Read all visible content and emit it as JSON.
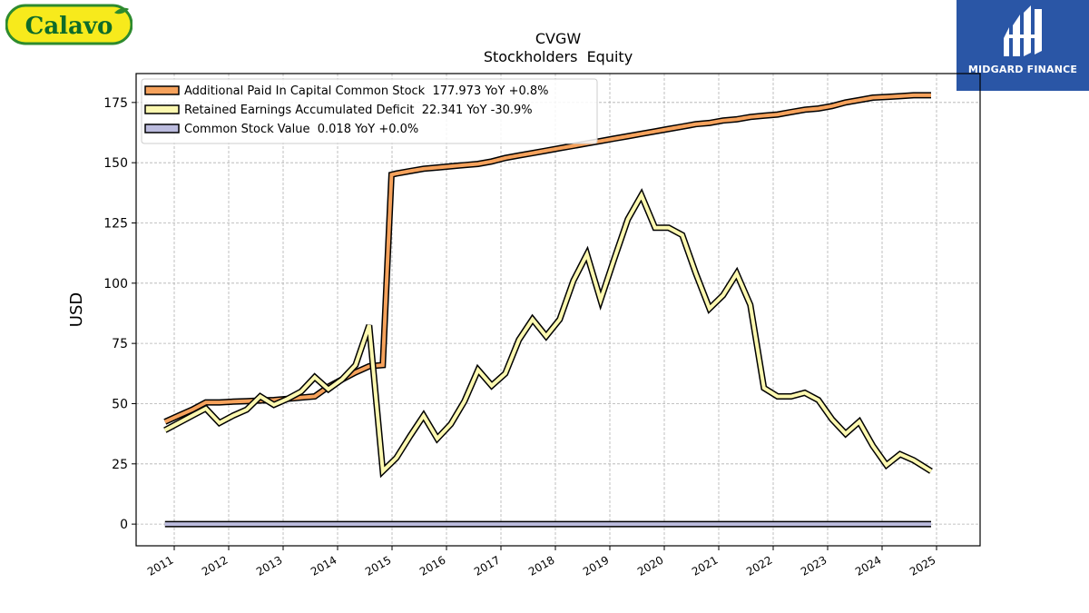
{
  "brand_logo": {
    "text": "Calavo",
    "colors": {
      "background": "#f7ea1c",
      "border": "#2e8b2e",
      "text": "#0e6b2a"
    }
  },
  "partner_logo": {
    "name": "MIDGARD FINANCE",
    "colors": {
      "background": "#2a56a6",
      "text": "#ffffff"
    }
  },
  "chart_data": {
    "type": "line",
    "title": "CVGW",
    "subtitle": "Stockholders  Equity",
    "ylabel": "USD",
    "xlabel": "",
    "xlim": [
      2010.3,
      2025.8
    ],
    "ylim": [
      -9,
      187
    ],
    "yticks": [
      0,
      25,
      50,
      75,
      100,
      125,
      150,
      175
    ],
    "xticks": [
      "2011",
      "2012",
      "2013",
      "2014",
      "2015",
      "2016",
      "2017",
      "2018",
      "2019",
      "2020",
      "2021",
      "2022",
      "2023",
      "2024",
      "2025"
    ],
    "grid": true,
    "legend_position": "top-left",
    "series": [
      {
        "name": "Additional Paid In Capital Common Stock  177.973 YoY +0.8%",
        "color": "#f6a25c",
        "points": [
          [
            2010.83,
            42.5
          ],
          [
            2011.08,
            45.0
          ],
          [
            2011.33,
            47.5
          ],
          [
            2011.58,
            50.5
          ],
          [
            2011.83,
            50.5
          ],
          [
            2012.08,
            50.8
          ],
          [
            2012.33,
            51.0
          ],
          [
            2012.58,
            51.3
          ],
          [
            2012.83,
            51.5
          ],
          [
            2013.08,
            52.0
          ],
          [
            2013.33,
            52.5
          ],
          [
            2013.58,
            53.0
          ],
          [
            2013.83,
            57.0
          ],
          [
            2014.08,
            60.0
          ],
          [
            2014.33,
            63.0
          ],
          [
            2014.58,
            65.5
          ],
          [
            2014.83,
            66.0
          ],
          [
            2014.99,
            145.0
          ],
          [
            2015.08,
            145.5
          ],
          [
            2015.33,
            146.5
          ],
          [
            2015.58,
            147.5
          ],
          [
            2015.83,
            148.0
          ],
          [
            2016.08,
            148.5
          ],
          [
            2016.33,
            149.0
          ],
          [
            2016.58,
            149.5
          ],
          [
            2016.83,
            150.5
          ],
          [
            2017.08,
            152.0
          ],
          [
            2017.33,
            153.0
          ],
          [
            2017.58,
            154.0
          ],
          [
            2017.83,
            155.0
          ],
          [
            2018.08,
            156.0
          ],
          [
            2018.33,
            157.0
          ],
          [
            2018.58,
            158.0
          ],
          [
            2018.83,
            159.0
          ],
          [
            2019.08,
            160.0
          ],
          [
            2019.33,
            161.0
          ],
          [
            2019.58,
            162.0
          ],
          [
            2019.83,
            163.0
          ],
          [
            2020.08,
            164.0
          ],
          [
            2020.33,
            165.0
          ],
          [
            2020.58,
            166.0
          ],
          [
            2020.83,
            166.5
          ],
          [
            2021.08,
            167.5
          ],
          [
            2021.33,
            168.0
          ],
          [
            2021.58,
            169.0
          ],
          [
            2021.83,
            169.5
          ],
          [
            2022.08,
            170.0
          ],
          [
            2022.33,
            171.0
          ],
          [
            2022.58,
            172.0
          ],
          [
            2022.83,
            172.5
          ],
          [
            2023.08,
            173.5
          ],
          [
            2023.33,
            175.0
          ],
          [
            2023.58,
            176.0
          ],
          [
            2023.83,
            177.0
          ],
          [
            2024.08,
            177.3
          ],
          [
            2024.33,
            177.6
          ],
          [
            2024.58,
            178.0
          ],
          [
            2024.9,
            178.0
          ]
        ]
      },
      {
        "name": "Retained Earnings Accumulated Deficit  22.341 YoY -30.9%",
        "color": "#fcf8b0",
        "points": [
          [
            2010.83,
            39.0
          ],
          [
            2011.08,
            42.0
          ],
          [
            2011.33,
            45.0
          ],
          [
            2011.58,
            48.0
          ],
          [
            2011.83,
            42.0
          ],
          [
            2012.08,
            45.0
          ],
          [
            2012.33,
            47.5
          ],
          [
            2012.58,
            53.0
          ],
          [
            2012.83,
            49.5
          ],
          [
            2013.08,
            52.0
          ],
          [
            2013.33,
            55.0
          ],
          [
            2013.58,
            61.0
          ],
          [
            2013.83,
            56.0
          ],
          [
            2014.08,
            60.0
          ],
          [
            2014.33,
            66.0
          ],
          [
            2014.58,
            82.5
          ],
          [
            2014.83,
            22.0
          ],
          [
            2015.08,
            27.5
          ],
          [
            2015.33,
            36.5
          ],
          [
            2015.58,
            45.0
          ],
          [
            2015.83,
            35.5
          ],
          [
            2016.08,
            41.5
          ],
          [
            2016.33,
            51.0
          ],
          [
            2016.58,
            64.0
          ],
          [
            2016.83,
            57.5
          ],
          [
            2017.08,
            62.5
          ],
          [
            2017.33,
            76.5
          ],
          [
            2017.58,
            85.0
          ],
          [
            2017.83,
            78.0
          ],
          [
            2018.08,
            85.0
          ],
          [
            2018.33,
            101.0
          ],
          [
            2018.58,
            112.0
          ],
          [
            2018.83,
            93.0
          ],
          [
            2019.08,
            110.0
          ],
          [
            2019.33,
            126.5
          ],
          [
            2019.58,
            136.5
          ],
          [
            2019.83,
            123.0
          ],
          [
            2020.08,
            123.0
          ],
          [
            2020.33,
            120.0
          ],
          [
            2020.58,
            104.0
          ],
          [
            2020.83,
            89.5
          ],
          [
            2021.08,
            95.0
          ],
          [
            2021.33,
            104.0
          ],
          [
            2021.58,
            91.0
          ],
          [
            2021.83,
            56.5
          ],
          [
            2022.08,
            53.0
          ],
          [
            2022.33,
            53.0
          ],
          [
            2022.58,
            54.5
          ],
          [
            2022.83,
            51.5
          ],
          [
            2023.08,
            43.5
          ],
          [
            2023.33,
            37.5
          ],
          [
            2023.58,
            42.5
          ],
          [
            2023.83,
            32.5
          ],
          [
            2024.08,
            24.5
          ],
          [
            2024.33,
            29.0
          ],
          [
            2024.58,
            26.5
          ],
          [
            2024.9,
            22.0
          ]
        ]
      },
      {
        "name": "Common Stock Value  0.018 YoY +0.0%",
        "color": "#bcbcde",
        "points": [
          [
            2010.83,
            0.018
          ],
          [
            2024.9,
            0.018
          ]
        ]
      }
    ]
  }
}
